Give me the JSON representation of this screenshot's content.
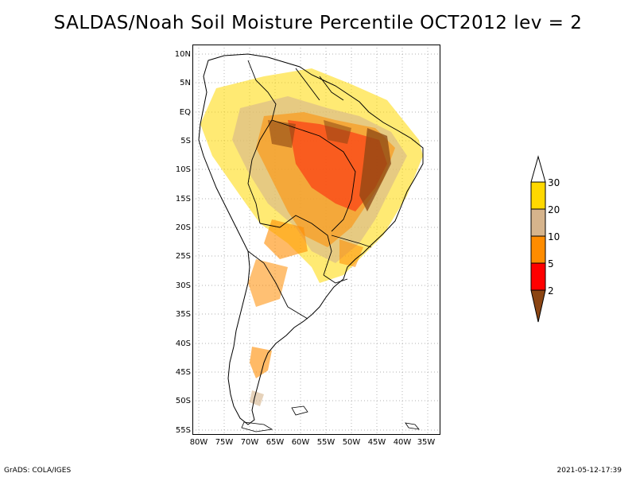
{
  "title": "SALDAS/Noah Soil Moisture Percentile OCT2012 lev = 2",
  "lat_labels": [
    "10N",
    "5N",
    "EQ",
    "5S",
    "10S",
    "15S",
    "20S",
    "25S",
    "30S",
    "35S",
    "40S",
    "45S",
    "50S",
    "55S"
  ],
  "lon_labels": [
    "80W",
    "75W",
    "70W",
    "65W",
    "60W",
    "55W",
    "50W",
    "45W",
    "40W",
    "35W"
  ],
  "legend": {
    "labels": [
      "30",
      "20",
      "10",
      "5",
      "2"
    ],
    "colors": [
      "#ffffff",
      "#ffd800",
      "#d6b48c",
      "#ff8c00",
      "#ff0000",
      "#8b4513"
    ]
  },
  "footer": {
    "left": "GrADS: COLA/IGES",
    "right": "2021-05-12-17:39"
  }
}
